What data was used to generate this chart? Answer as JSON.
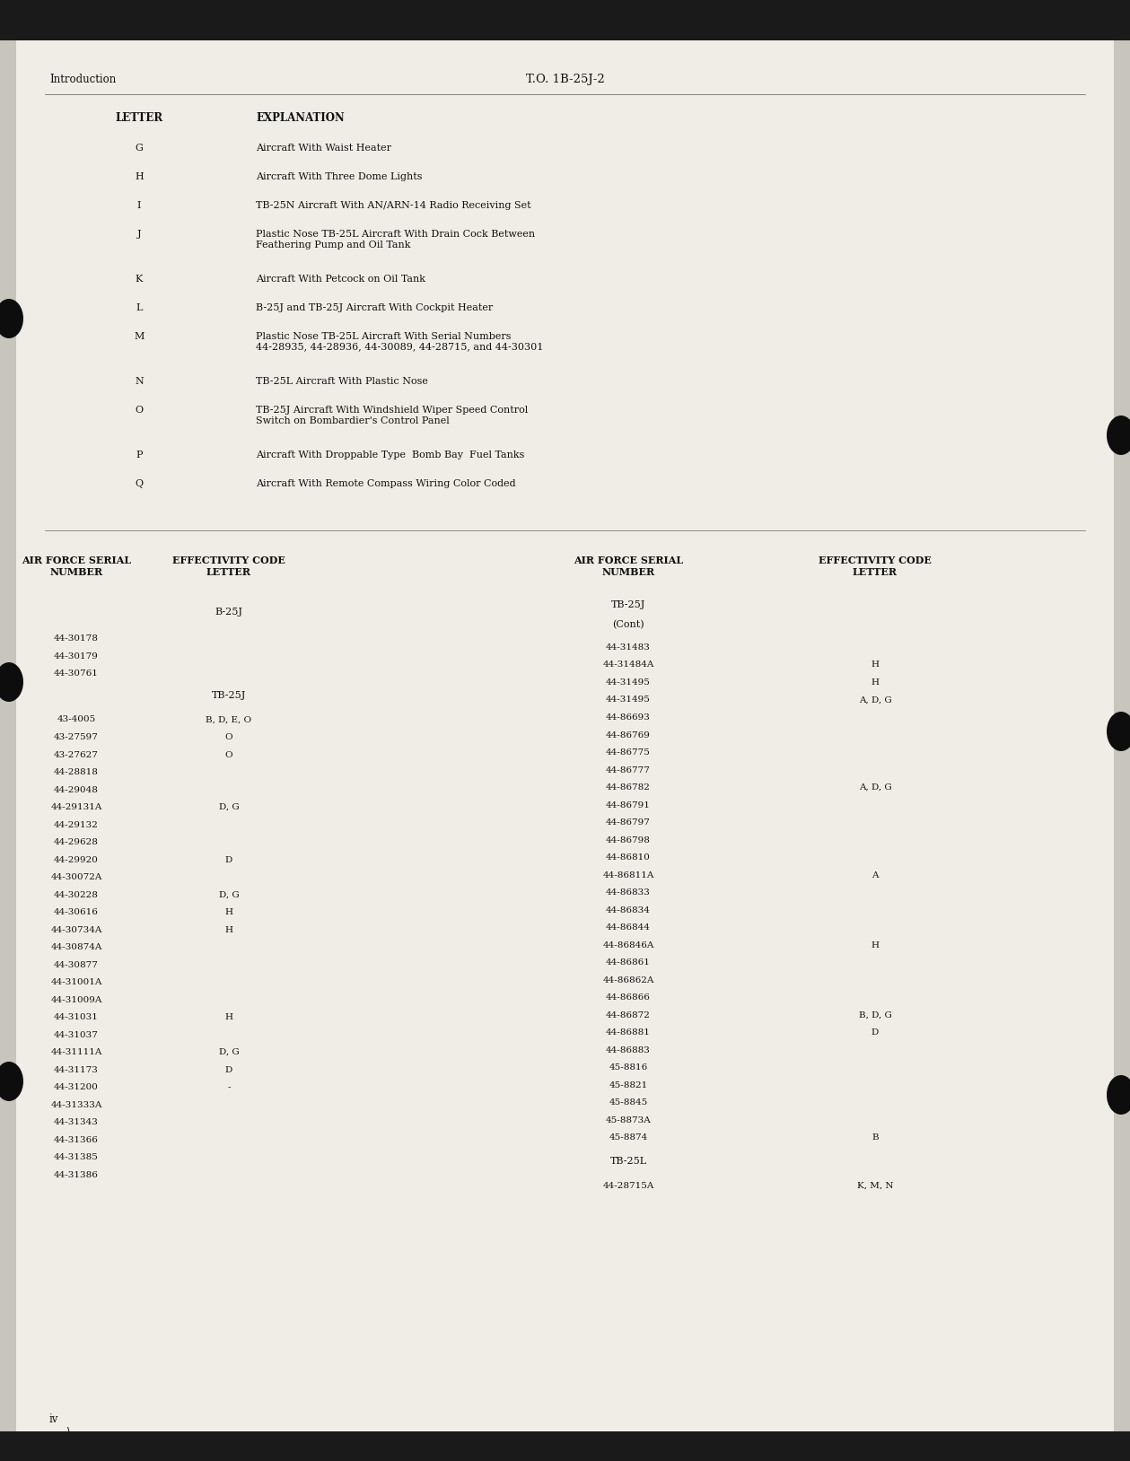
{
  "bg_color": "#c8c5bc",
  "page_bg": "#f0ede6",
  "header_left": "Introduction",
  "header_center": "T.O. 1B-25J-2",
  "footer_text": "iv",
  "letter_col_header": "LETTER",
  "explanation_col_header": "EXPLANATION",
  "letter_explanations": [
    [
      "G",
      "Aircraft With Waist Heater"
    ],
    [
      "H",
      "Aircraft With Three Dome Lights"
    ],
    [
      "I",
      "TB-25N Aircraft With AN/ARN-14 Radio Receiving Set"
    ],
    [
      "J",
      "Plastic Nose TB-25L Aircraft With Drain Cock Between\nFeathering Pump and Oil Tank"
    ],
    [
      "K",
      "Aircraft With Petcock on Oil Tank"
    ],
    [
      "L",
      "B-25J and TB-25J Aircraft With Cockpit Heater"
    ],
    [
      "M",
      "Plastic Nose TB-25L Aircraft With Serial Numbers\n44-28935, 44-28936, 44-30089, 44-28715, and 44-30301"
    ],
    [
      "N",
      "TB-25L Aircraft With Plastic Nose"
    ],
    [
      "O",
      "TB-25J Aircraft With Windshield Wiper Speed Control\nSwitch on Bombardier's Control Panel"
    ],
    [
      "P",
      "Aircraft With Droppable Type  Bomb Bay  Fuel Tanks"
    ],
    [
      "Q",
      "Aircraft With Remote Compass Wiring Color Coded"
    ]
  ],
  "table_col1_header": "AIR FORCE SERIAL\nNUMBER",
  "table_col2_header": "EFFECTIVITY CODE\nLETTER",
  "table_col3_header": "AIR FORCE SERIAL\nNUMBER",
  "table_col4_header": "EFFECTIVITY CODE\nLETTER",
  "left_section_label": "B-25J",
  "left_section2_label": "TB-25J",
  "right_section_label": "TB-25J",
  "right_section_cont": "(Cont)",
  "right_section2_label": "TB-25L",
  "left_b25j_rows": [
    [
      "44-30178",
      ""
    ],
    [
      "44-30179",
      ""
    ],
    [
      "44-30761",
      ""
    ]
  ],
  "left_tb25j_rows": [
    [
      "43-4005",
      "B, D, E, O"
    ],
    [
      "43-27597",
      "O"
    ],
    [
      "43-27627",
      "O"
    ],
    [
      "44-28818",
      ""
    ],
    [
      "44-29048",
      ""
    ],
    [
      "44-29131A",
      "D, G"
    ],
    [
      "44-29132",
      ""
    ],
    [
      "44-29628",
      ""
    ],
    [
      "44-29920",
      "D"
    ],
    [
      "44-30072A",
      ""
    ],
    [
      "44-30228",
      "D, G"
    ],
    [
      "44-30616",
      "H"
    ],
    [
      "44-30734A",
      "H"
    ],
    [
      "44-30874A",
      ""
    ],
    [
      "44-30877",
      ""
    ],
    [
      "44-31001A",
      ""
    ],
    [
      "44-31009A",
      ""
    ],
    [
      "44-31031",
      "H"
    ],
    [
      "44-31037",
      ""
    ],
    [
      "44-31111A",
      "D, G"
    ],
    [
      "44-31173",
      "D"
    ],
    [
      "44-31200",
      "-"
    ],
    [
      "44-31333A",
      ""
    ],
    [
      "44-31343",
      ""
    ],
    [
      "44-31366",
      ""
    ],
    [
      "44-31385",
      ""
    ],
    [
      "44-31386",
      ""
    ]
  ],
  "right_tb25j_cont_rows": [
    [
      "44-31483",
      ""
    ],
    [
      "44-31484A",
      "H"
    ],
    [
      "44-31495",
      "H"
    ],
    [
      "44-31495",
      "A, D, G"
    ],
    [
      "44-86693",
      ""
    ],
    [
      "44-86769",
      ""
    ],
    [
      "44-86775",
      ""
    ],
    [
      "44-86777",
      ""
    ],
    [
      "44-86782",
      "A, D, G"
    ],
    [
      "44-86791",
      ""
    ],
    [
      "44-86797",
      ""
    ],
    [
      "44-86798",
      ""
    ],
    [
      "44-86810",
      ""
    ],
    [
      "44-86811A",
      "A"
    ],
    [
      "44-86833",
      ""
    ],
    [
      "44-86834",
      ""
    ],
    [
      "44-86844",
      ""
    ],
    [
      "44-86846A",
      "H"
    ],
    [
      "44-86861",
      ""
    ],
    [
      "44-86862A",
      ""
    ],
    [
      "44-86866",
      ""
    ],
    [
      "44-86872",
      "B, D, G"
    ],
    [
      "44-86881",
      "D"
    ],
    [
      "44-86883",
      ""
    ],
    [
      "45-8816",
      ""
    ],
    [
      "45-8821",
      ""
    ],
    [
      "45-8845",
      ""
    ],
    [
      "45-8873A",
      ""
    ],
    [
      "45-8874",
      "B"
    ]
  ],
  "right_tb25l_rows": [
    [
      "44-28715A",
      "K, M, N"
    ]
  ]
}
